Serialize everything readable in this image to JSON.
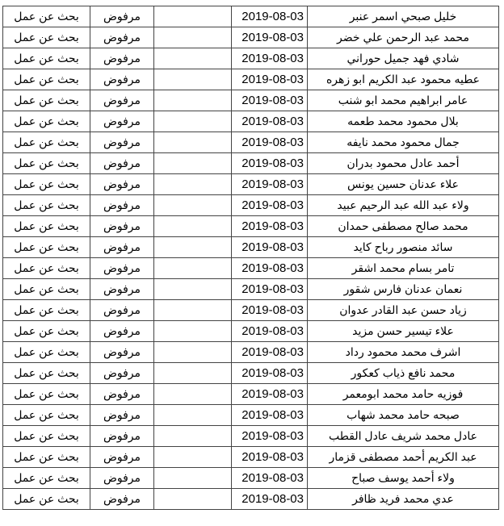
{
  "rows": [
    {
      "name": "خليل صبحي اسمر عنبر",
      "date": "2019-08-03",
      "status": "مرفوض",
      "purpose": "بحث عن عمل"
    },
    {
      "name": "محمد عبد الرحمن علي خضر",
      "date": "2019-08-03",
      "status": "مرفوض",
      "purpose": "بحث عن عمل"
    },
    {
      "name": "شادي فهد جميل حوراني",
      "date": "2019-08-03",
      "status": "مرفوض",
      "purpose": "بحث عن عمل"
    },
    {
      "name": "عطيه محمود عبد الكريم ابو زهره",
      "date": "2019-08-03",
      "status": "مرفوض",
      "purpose": "بحث عن عمل"
    },
    {
      "name": "عامر ابراهيم محمد ابو شنب",
      "date": "2019-08-03",
      "status": "مرفوض",
      "purpose": "بحث عن عمل"
    },
    {
      "name": "بلال محمود محمد طعمه",
      "date": "2019-08-03",
      "status": "مرفوض",
      "purpose": "بحث عن عمل"
    },
    {
      "name": "جمال محمود محمد نايفه",
      "date": "2019-08-03",
      "status": "مرفوض",
      "purpose": "بحث عن عمل"
    },
    {
      "name": "أحمد عادل محمود بدران",
      "date": "2019-08-03",
      "status": "مرفوض",
      "purpose": "بحث عن عمل"
    },
    {
      "name": "علاء عدنان حسين يونس",
      "date": "2019-08-03",
      "status": "مرفوض",
      "purpose": "بحث عن عمل"
    },
    {
      "name": "ولاء عبد الله عبد الرحيم عبيد",
      "date": "2019-08-03",
      "status": "مرفوض",
      "purpose": "بحث عن عمل"
    },
    {
      "name": "محمد صالح مصطفى حمدان",
      "date": "2019-08-03",
      "status": "مرفوض",
      "purpose": "بحث عن عمل"
    },
    {
      "name": "سائد منصور رباح كايد",
      "date": "2019-08-03",
      "status": "مرفوض",
      "purpose": "بحث عن عمل"
    },
    {
      "name": "تامر بسام محمد اشقر",
      "date": "2019-08-03",
      "status": "مرفوض",
      "purpose": "بحث عن عمل"
    },
    {
      "name": "نعمان عدنان فارس شقور",
      "date": "2019-08-03",
      "status": "مرفوض",
      "purpose": "بحث عن عمل"
    },
    {
      "name": "زياد حسن عبد القادر عدوان",
      "date": "2019-08-03",
      "status": "مرفوض",
      "purpose": "بحث عن عمل"
    },
    {
      "name": "علاء تيسير حسن مزيد",
      "date": "2019-08-03",
      "status": "مرفوض",
      "purpose": "بحث عن عمل"
    },
    {
      "name": "اشرف محمد محمود رداد",
      "date": "2019-08-03",
      "status": "مرفوض",
      "purpose": "بحث عن عمل"
    },
    {
      "name": "محمد نافع ذياب كعكور",
      "date": "2019-08-03",
      "status": "مرفوض",
      "purpose": "بحث عن عمل"
    },
    {
      "name": "فوزيه حامد محمد ابومعمر",
      "date": "2019-08-03",
      "status": "مرفوض",
      "purpose": "بحث عن عمل"
    },
    {
      "name": "صبحه حامد محمد شهاب",
      "date": "2019-08-03",
      "status": "مرفوض",
      "purpose": "بحث عن عمل"
    },
    {
      "name": "عادل محمد شريف عادل القطب",
      "date": "2019-08-03",
      "status": "مرفوض",
      "purpose": "بحث عن عمل"
    },
    {
      "name": "عبد الكريم أحمد مصطفى قزمار",
      "date": "2019-08-03",
      "status": "مرفوض",
      "purpose": "بحث عن عمل"
    },
    {
      "name": "ولاء أحمد يوسف صباح",
      "date": "2019-08-03",
      "status": "مرفوض",
      "purpose": "بحث عن عمل"
    },
    {
      "name": "عدي محمد فريد ظافر",
      "date": "2019-08-03",
      "status": "مرفوض",
      "purpose": "بحث عن عمل"
    }
  ]
}
